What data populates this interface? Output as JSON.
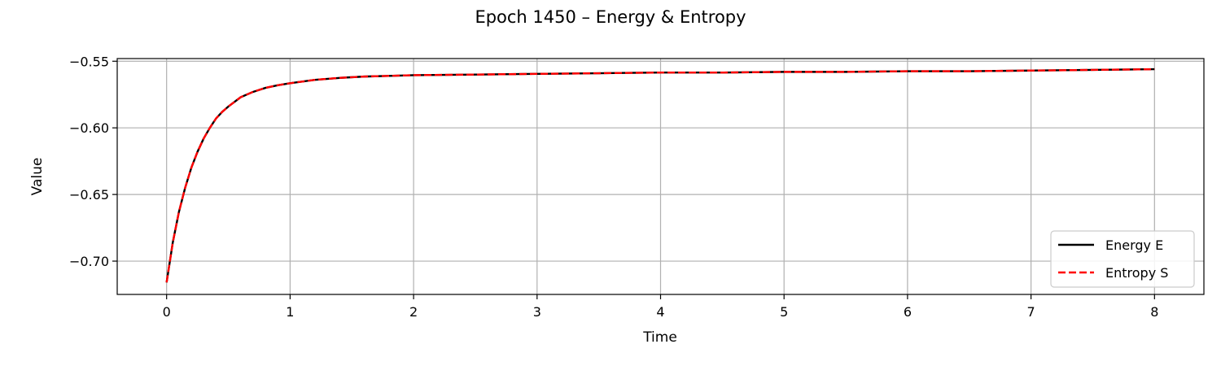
{
  "chart_data": {
    "type": "line",
    "title": "Epoch 1450 – Energy & Entropy",
    "xlabel": "Time",
    "ylabel": "Value",
    "xlim": [
      -0.4,
      8.4
    ],
    "ylim": [
      -0.725,
      -0.548
    ],
    "xticks": [
      0,
      1,
      2,
      3,
      4,
      5,
      6,
      7,
      8
    ],
    "yticks": [
      -0.7,
      -0.65,
      -0.6,
      -0.55
    ],
    "ytick_labels": [
      "−0.70",
      "−0.65",
      "−0.60",
      "−0.55"
    ],
    "grid": true,
    "legend": "lower-right",
    "x": [
      0,
      0.05,
      0.1,
      0.15,
      0.2,
      0.25,
      0.3,
      0.35,
      0.4,
      0.45,
      0.5,
      0.6,
      0.7,
      0.8,
      0.9,
      1.0,
      1.2,
      1.4,
      1.6,
      1.8,
      2.0,
      2.5,
      3.0,
      3.5,
      4.0,
      4.5,
      5.0,
      5.5,
      6.0,
      6.5,
      7.0,
      7.5,
      8.0
    ],
    "series": [
      {
        "name": "Energy E",
        "color": "#000000",
        "style": "solid",
        "values": [
          -0.716,
          -0.686,
          -0.663,
          -0.645,
          -0.63,
          -0.618,
          -0.608,
          -0.6,
          -0.593,
          -0.588,
          -0.584,
          -0.577,
          -0.573,
          -0.57,
          -0.568,
          -0.5665,
          -0.564,
          -0.5625,
          -0.5615,
          -0.561,
          -0.5605,
          -0.56,
          -0.5595,
          -0.559,
          -0.5585,
          -0.5585,
          -0.558,
          -0.558,
          -0.5575,
          -0.5575,
          -0.557,
          -0.5565,
          -0.556
        ]
      },
      {
        "name": "Entropy S",
        "color": "#ff0000",
        "style": "dashed",
        "values": [
          -0.716,
          -0.686,
          -0.663,
          -0.645,
          -0.63,
          -0.618,
          -0.608,
          -0.6,
          -0.593,
          -0.588,
          -0.584,
          -0.577,
          -0.573,
          -0.57,
          -0.568,
          -0.5665,
          -0.564,
          -0.5625,
          -0.5615,
          -0.561,
          -0.5605,
          -0.56,
          -0.5595,
          -0.559,
          -0.5585,
          -0.5585,
          -0.558,
          -0.558,
          -0.5575,
          -0.5575,
          -0.557,
          -0.5565,
          -0.556
        ]
      }
    ]
  }
}
